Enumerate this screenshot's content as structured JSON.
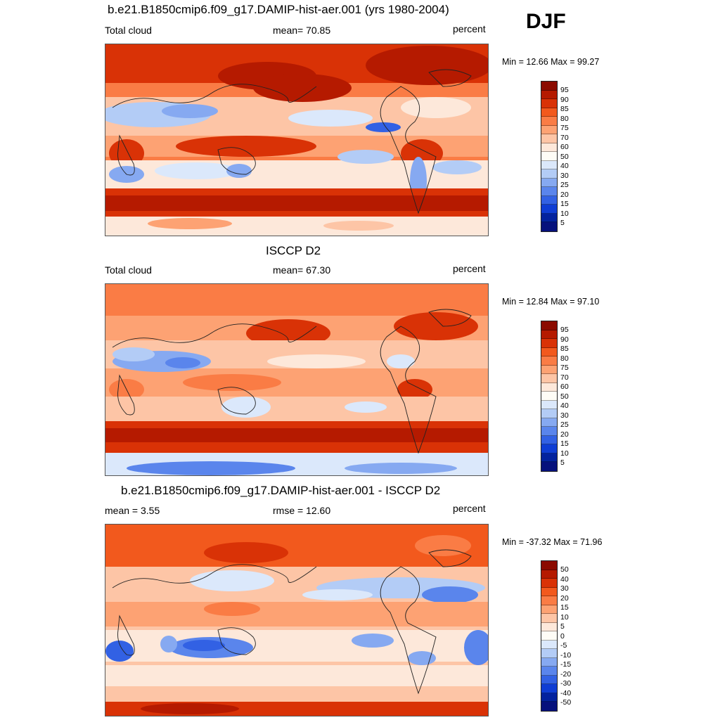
{
  "season": "DJF",
  "panels": [
    {
      "title": "b.e21.B1850cmip6.f09_g17.DAMIP-hist-aer.001 (yrs 1980-2004)",
      "left_label": "Total cloud",
      "center_label": "mean=  70.85",
      "right_label": "percent",
      "minmax": "Min =  12.66 Max =  99.27",
      "colorbar_ticks": [
        "95",
        "90",
        "85",
        "80",
        "75",
        "70",
        "60",
        "50",
        "40",
        "30",
        "25",
        "20",
        "15",
        "10",
        "5"
      ]
    },
    {
      "title": "ISCCP D2",
      "left_label": "Total cloud",
      "center_label": "mean=  67.30",
      "right_label": "percent",
      "minmax": "Min =  12.84 Max =  97.10",
      "colorbar_ticks": [
        "95",
        "90",
        "85",
        "80",
        "75",
        "70",
        "60",
        "50",
        "40",
        "30",
        "25",
        "20",
        "15",
        "10",
        "5"
      ]
    },
    {
      "title": "b.e21.B1850cmip6.f09_g17.DAMIP-hist-aer.001 - ISCCP D2",
      "left_label": "mean =   3.55",
      "center_label": "rmse =  12.60",
      "right_label": "percent",
      "minmax": "Min = -37.32 Max =  71.96",
      "colorbar_ticks": [
        "50",
        "40",
        "30",
        "20",
        "15",
        "10",
        "5",
        "0",
        "-5",
        "-10",
        "-15",
        "-20",
        "-30",
        "-40",
        "-50"
      ]
    }
  ],
  "colors": {
    "colorbar": [
      "#8b0b00",
      "#b51a00",
      "#d93206",
      "#f2591d",
      "#fa7c45",
      "#fda273",
      "#fdc5a6",
      "#fde8da",
      "#fefcf6",
      "#dbe8fb",
      "#b3ccf6",
      "#86a9f1",
      "#5a85ec",
      "#3261e4",
      "#0f3dd4",
      "#03229e",
      "#06117c"
    ],
    "border": "#555555"
  }
}
